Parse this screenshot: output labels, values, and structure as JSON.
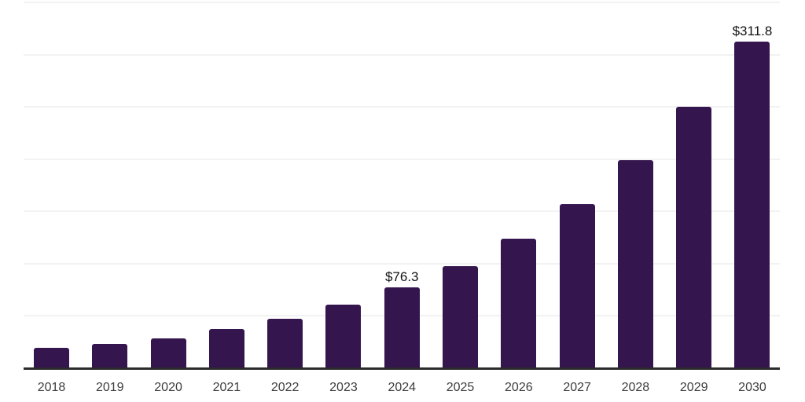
{
  "chart_data": {
    "type": "bar",
    "title": "",
    "xlabel": "",
    "ylabel": "",
    "categories": [
      "2018",
      "2019",
      "2020",
      "2021",
      "2022",
      "2023",
      "2024",
      "2025",
      "2026",
      "2027",
      "2028",
      "2029",
      "2030"
    ],
    "values": [
      19.0,
      22.5,
      28.0,
      36.5,
      46.5,
      60.0,
      76.3,
      97.0,
      123.5,
      156.5,
      198.5,
      249.5,
      311.8
    ],
    "value_labels": [
      "",
      "",
      "",
      "",
      "",
      "",
      "$76.3",
      "",
      "",
      "",
      "",
      "",
      "$311.8"
    ],
    "value_prefix": "$",
    "ylim": [
      0,
      350
    ],
    "grid": {
      "show": true,
      "interval": 50,
      "orientation": "horizontal"
    },
    "legend": "none",
    "colors": {
      "bar": "#34154e",
      "grid_line": "#f2f2f2",
      "axis_line": "#2b2b2b",
      "value_label": "#111111",
      "tick_label": "#3d3d3d",
      "background": "#ffffff"
    }
  }
}
